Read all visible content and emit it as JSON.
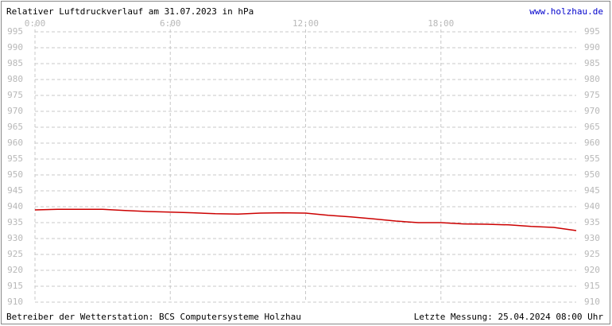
{
  "chart_data": {
    "type": "line",
    "title": "Relativer Luftdruckverlauf am 31.07.2023 in hPa",
    "link": "www.holzhau.de",
    "footer_left": "Betreiber der Wetterstation: BCS Computersysteme Holzhau",
    "footer_right": "Letzte Messung: 25.04.2024 08:00 Uhr",
    "x": [
      0,
      1,
      2,
      3,
      4,
      5,
      6,
      7,
      8,
      9,
      10,
      11,
      12,
      13,
      14,
      15,
      16,
      17,
      18,
      19,
      20,
      21,
      22,
      23,
      24
    ],
    "series": [
      {
        "name": "Luftdruck",
        "color": "#cc0000",
        "values": [
          939,
          939.2,
          939.2,
          939.2,
          938.8,
          938.5,
          938.3,
          938.1,
          937.8,
          937.7,
          938,
          938.1,
          938,
          937.3,
          936.8,
          936.2,
          935.5,
          935,
          935,
          934.6,
          934.5,
          934.3,
          933.8,
          933.5,
          932.5
        ]
      }
    ],
    "xlim": [
      0,
      24
    ],
    "xticks": [
      {
        "value": 0,
        "label": "0:00"
      },
      {
        "value": 6,
        "label": "6:00"
      },
      {
        "value": 12,
        "label": "12:00"
      },
      {
        "value": 18,
        "label": "18:00"
      }
    ],
    "ylim": [
      910,
      995
    ],
    "yticks": [
      910,
      915,
      920,
      925,
      930,
      935,
      940,
      945,
      950,
      955,
      960,
      965,
      970,
      975,
      980,
      985,
      990,
      995
    ],
    "grid": true
  }
}
